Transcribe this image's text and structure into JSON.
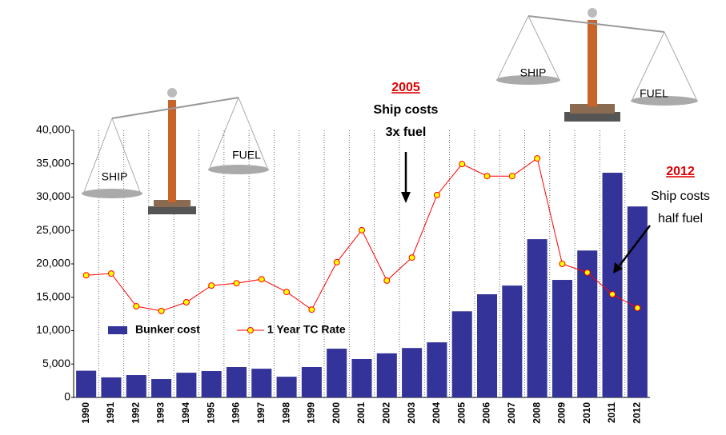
{
  "chart_data": {
    "type": "bar_line",
    "categories": [
      "1990",
      "1991",
      "1992",
      "1993",
      "1994",
      "1995",
      "1996",
      "1997",
      "1998",
      "1999",
      "2000",
      "2001",
      "2002",
      "2003",
      "2004",
      "2005",
      "2006",
      "2007",
      "2008",
      "2009",
      "2010",
      "2011",
      "2012"
    ],
    "series": [
      {
        "name": "Bunker cost",
        "color": "#333399",
        "type": "bar",
        "values": [
          4000,
          3000,
          3350,
          2750,
          3700,
          3950,
          4550,
          4300,
          3100,
          4550,
          7300,
          5750,
          6600,
          7400,
          8250,
          12900,
          15450,
          16750,
          23700,
          17600,
          22000,
          33650,
          28600
        ]
      },
      {
        "name": "1 Year TC Rate",
        "color": "#ff0000",
        "marker_color": "#ffff00",
        "type": "line",
        "values": [
          18300,
          18550,
          13650,
          12950,
          14250,
          16750,
          17100,
          17700,
          15800,
          13150,
          20250,
          25050,
          17500,
          20950,
          30300,
          34950,
          33150,
          33150,
          35800,
          20000,
          18700,
          15450,
          13400
        ]
      }
    ],
    "ylim": [
      0,
      40000
    ],
    "yticks": [
      0,
      {
        "value": 5000,
        "label": "5,000"
      },
      {
        "value": 10000,
        "label": "10,000"
      },
      {
        "value": 15000,
        "label": "15,000"
      },
      {
        "value": 20000,
        "label": "20,000"
      },
      {
        "value": 25000,
        "label": "25,000"
      },
      {
        "value": 30000,
        "label": "30,000"
      },
      {
        "value": 35000,
        "label": "35,000"
      },
      {
        "value": 40000,
        "label": "40,000"
      }
    ],
    "annotations": [
      {
        "year": "2005",
        "lines": [
          "Ship costs",
          "3x  fuel"
        ]
      },
      {
        "year": "2012",
        "lines": [
          "Ship costs",
          "half fuel"
        ]
      }
    ],
    "scale_labels": [
      [
        "SHIP",
        "FUEL"
      ],
      [
        "SHIP",
        "FUEL"
      ]
    ]
  }
}
